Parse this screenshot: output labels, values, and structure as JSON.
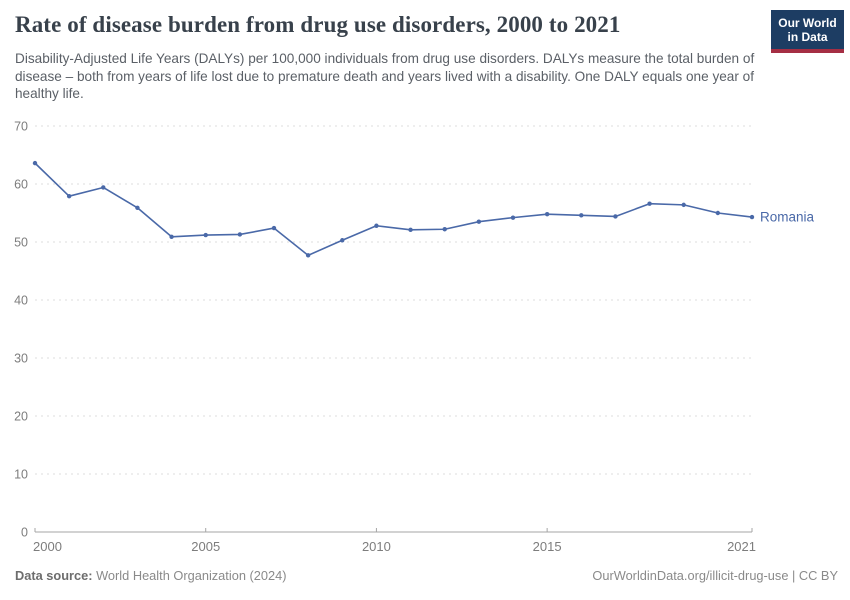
{
  "header": {
    "title": "Rate of disease burden from drug use disorders, 2000 to 2021",
    "subtitle": "Disability-Adjusted Life Years (DALYs) per 100,000 individuals from drug use disorders. DALYs measure the total burden of disease – both from years of life lost due to premature death and years lived with a disability. One DALY equals one year of healthy life.",
    "logo": {
      "line1": "Our World",
      "line2": "in Data",
      "bg_color": "#1d3d63",
      "underline_color": "#a52e44"
    }
  },
  "chart_data": {
    "type": "line",
    "title": "Rate of disease burden from drug use disorders, 2000 to 2021",
    "xlabel": "",
    "ylabel": "DALYs per 100,000 individuals",
    "x": [
      2000,
      2001,
      2002,
      2003,
      2004,
      2005,
      2006,
      2007,
      2008,
      2009,
      2010,
      2011,
      2012,
      2013,
      2014,
      2015,
      2016,
      2017,
      2018,
      2019,
      2020,
      2021
    ],
    "series": [
      {
        "name": "Romania",
        "color": "#4a69a8",
        "values": [
          63.6,
          57.9,
          59.4,
          55.9,
          50.9,
          51.2,
          51.3,
          52.4,
          47.7,
          50.3,
          52.8,
          52.1,
          52.2,
          53.5,
          54.2,
          54.8,
          54.6,
          54.4,
          56.6,
          56.4,
          55.0,
          54.3
        ]
      }
    ],
    "ylim": [
      0,
      70
    ],
    "yticks": [
      0,
      10,
      20,
      30,
      40,
      50,
      60,
      70
    ],
    "xticks": [
      2000,
      2005,
      2010,
      2015,
      2021
    ],
    "grid": "horizontal-dashed",
    "legend_position": "end-of-line",
    "colors": {
      "gridline": "#dedede",
      "axis_line": "#a5a5a5",
      "tick_label": "#7d7d7d"
    }
  },
  "footer": {
    "datasource_label": "Data source:",
    "datasource_value": " World Health Organization (2024)",
    "attribution": "OurWorldinData.org/illicit-drug-use | CC BY"
  }
}
